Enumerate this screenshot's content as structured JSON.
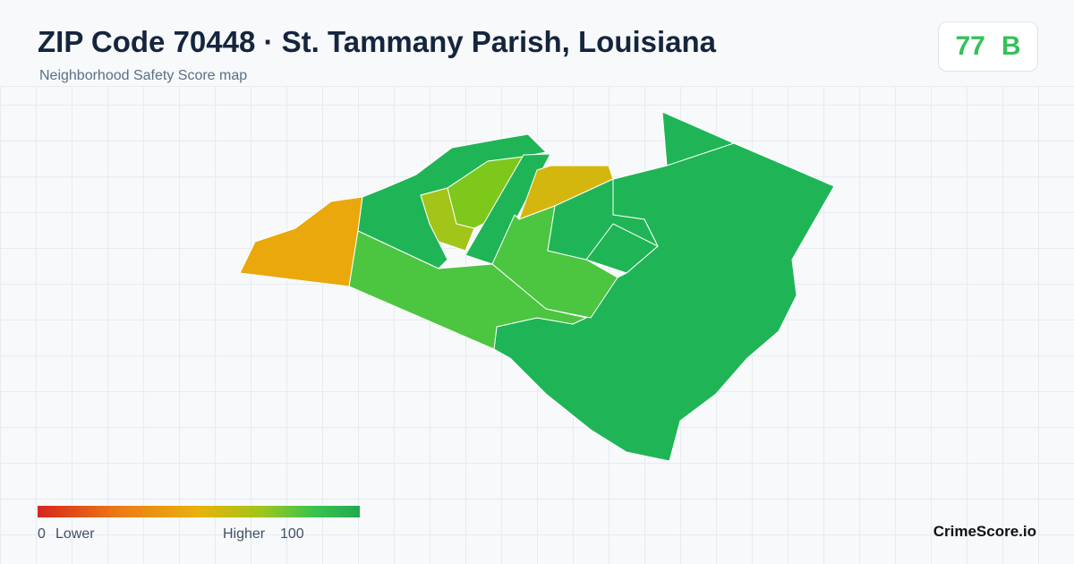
{
  "header": {
    "title": "ZIP Code 70448 · St. Tammany Parish, Louisiana",
    "subtitle": "Neighborhood Safety Score map"
  },
  "badge": {
    "score": "77",
    "grade": "B"
  },
  "legend": {
    "min": "0",
    "low_label": "Lower",
    "high_label": "Higher",
    "max": "100"
  },
  "brand": "CrimeScore.io"
}
